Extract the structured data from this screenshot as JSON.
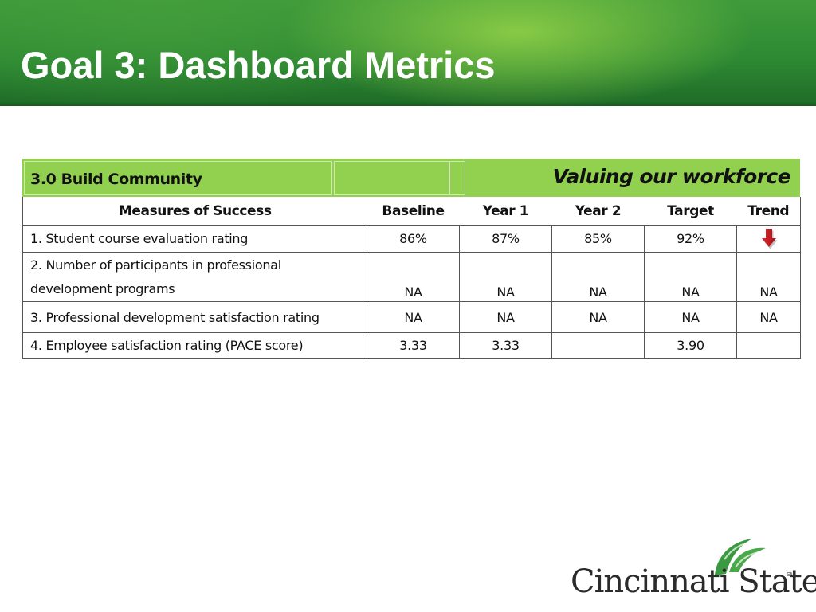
{
  "slide": {
    "title": "Goal 3: Dashboard Metrics",
    "accent_color": "#92d050",
    "banner_color": "#2e8a33"
  },
  "table": {
    "section_title": "3.0 Build Community",
    "section_tag": "Valuing our workforce",
    "columns": [
      "Measures of Success",
      "Baseline",
      "Year 1",
      "Year 2",
      "Target",
      "Trend"
    ],
    "rows": [
      {
        "measure": "1. Student course evaluation rating",
        "baseline": "86%",
        "year1": "87%",
        "year2": "85%",
        "target": "92%",
        "trend": "",
        "trend_icon": "red-down-arrow-icon"
      },
      {
        "measure": "2. Number of participants in professional development programs",
        "baseline": "NA",
        "year1": "NA",
        "year2": "NA",
        "target": "NA",
        "trend": "NA"
      },
      {
        "measure": "3. Professional development satisfaction rating",
        "baseline": "NA",
        "year1": "NA",
        "year2": "NA",
        "target": "NA",
        "trend": "NA"
      },
      {
        "measure": "4. Employee satisfaction rating (PACE score)",
        "baseline": "3.33",
        "year1": "3.33",
        "year2": "",
        "target": "3.90",
        "trend": ""
      }
    ]
  },
  "logo": {
    "name": "Cincinnati State",
    "mark": "SM",
    "icon": "leaves-icon",
    "color": "#3a9a3f"
  }
}
